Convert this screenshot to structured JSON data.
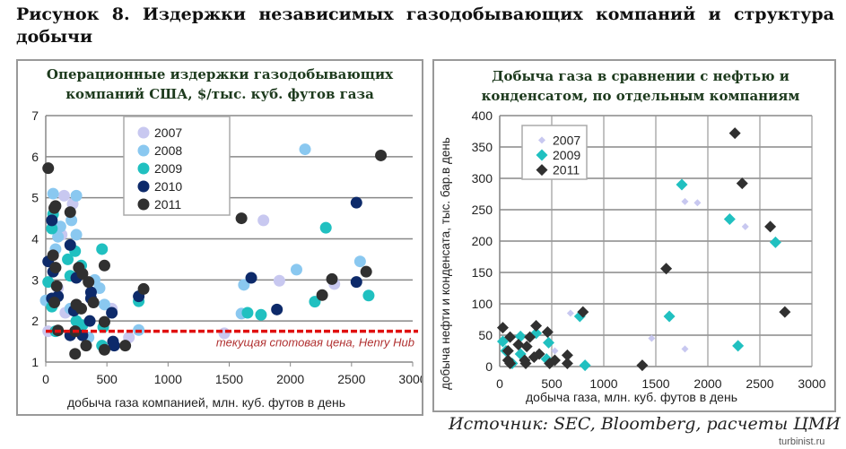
{
  "figure_title": "Рисунок 8. Издержки независимых газодобывающих компаний и структура добычи",
  "source": "Источник: SEC, Bloomberg, расчеты ЦМИ",
  "watermark": "turbinist.ru",
  "chart_data": [
    {
      "type": "scatter",
      "title_lines": [
        "Операционные издержки газодобывающих",
        "компаний США, $/тыс. куб. футов газа"
      ],
      "xlabel": "добыча газа компанией, млн. куб. футов в день",
      "ylabel": "",
      "xlim": [
        0,
        3000
      ],
      "ylim": [
        1,
        7
      ],
      "xticks": [
        0,
        500,
        1000,
        1500,
        2000,
        2500,
        3000
      ],
      "yticks": [
        1,
        2,
        3,
        4,
        5,
        6,
        7
      ],
      "grid": "horizontal",
      "legend": "top-left",
      "marker": "circle",
      "reference_line": {
        "y": 1.75,
        "label": "текущая спотовая цена, Henry Hub",
        "color": "#e01010"
      },
      "series": [
        {
          "name": "2007",
          "color": "#c8c8f0",
          "points": [
            [
              20,
              1.75
            ],
            [
              150,
              5.05
            ],
            [
              220,
              4.85
            ],
            [
              130,
              4.1
            ],
            [
              160,
              2.2
            ],
            [
              100,
              2.8
            ],
            [
              1460,
              1.7
            ],
            [
              1780,
              4.45
            ],
            [
              1910,
              2.98
            ],
            [
              2360,
              2.9
            ],
            [
              680,
              1.6
            ],
            [
              540,
              2.3
            ],
            [
              250,
              2.0
            ]
          ]
        },
        {
          "name": "2008",
          "color": "#8ac8f0",
          "points": [
            [
              60,
              5.1
            ],
            [
              250,
              5.05
            ],
            [
              210,
              4.45
            ],
            [
              250,
              4.1
            ],
            [
              120,
              4.3
            ],
            [
              80,
              3.75
            ],
            [
              100,
              4.05
            ],
            [
              2120,
              6.18
            ],
            [
              2570,
              3.45
            ],
            [
              2050,
              3.25
            ],
            [
              1620,
              2.88
            ],
            [
              1600,
              2.18
            ],
            [
              760,
              1.78
            ],
            [
              480,
              2.4
            ],
            [
              440,
              2.8
            ],
            [
              400,
              3.0
            ],
            [
              200,
              2.3
            ],
            [
              350,
              1.6
            ],
            [
              0,
              2.5
            ]
          ]
        },
        {
          "name": "2009",
          "color": "#20c0c0",
          "points": [
            [
              60,
              4.6
            ],
            [
              50,
              4.25
            ],
            [
              240,
              3.7
            ],
            [
              180,
              3.5
            ],
            [
              460,
              3.75
            ],
            [
              290,
              3.35
            ],
            [
              200,
              3.1
            ],
            [
              20,
              2.95
            ],
            [
              50,
              2.35
            ],
            [
              250,
              2.0
            ],
            [
              300,
              1.9
            ],
            [
              470,
              1.85
            ],
            [
              2290,
              4.27
            ],
            [
              2200,
              2.47
            ],
            [
              2640,
              2.62
            ],
            [
              1650,
              2.2
            ],
            [
              1760,
              2.15
            ],
            [
              760,
              2.48
            ],
            [
              80,
              1.75
            ],
            [
              460,
              1.4
            ]
          ]
        },
        {
          "name": "2010",
          "color": "#0d2a6a",
          "points": [
            [
              50,
              4.45
            ],
            [
              200,
              3.85
            ],
            [
              20,
              3.45
            ],
            [
              60,
              3.2
            ],
            [
              250,
              3.05
            ],
            [
              370,
              2.7
            ],
            [
              100,
              2.6
            ],
            [
              50,
              2.55
            ],
            [
              370,
              2.55
            ],
            [
              230,
              2.25
            ],
            [
              540,
              2.2
            ],
            [
              360,
              2.0
            ],
            [
              200,
              1.65
            ],
            [
              300,
              1.65
            ],
            [
              550,
              1.5
            ],
            [
              560,
              1.4
            ],
            [
              760,
              2.6
            ],
            [
              1680,
              3.05
            ],
            [
              1890,
              2.28
            ],
            [
              2540,
              4.88
            ],
            [
              2540,
              2.95
            ]
          ]
        },
        {
          "name": "2011",
          "color": "#303030",
          "points": [
            [
              20,
              5.72
            ],
            [
              70,
              4.75
            ],
            [
              200,
              4.65
            ],
            [
              80,
              4.8
            ],
            [
              60,
              3.6
            ],
            [
              80,
              3.3
            ],
            [
              480,
              3.35
            ],
            [
              270,
              3.3
            ],
            [
              300,
              3.15
            ],
            [
              90,
              2.85
            ],
            [
              350,
              2.95
            ],
            [
              800,
              2.78
            ],
            [
              70,
              2.45
            ],
            [
              390,
              2.45
            ],
            [
              250,
              2.4
            ],
            [
              290,
              2.3
            ],
            [
              100,
              1.77
            ],
            [
              240,
              1.75
            ],
            [
              480,
              1.98
            ],
            [
              330,
              1.4
            ],
            [
              480,
              1.3
            ],
            [
              650,
              1.4
            ],
            [
              240,
              1.2
            ],
            [
              1600,
              4.5
            ],
            [
              2740,
              6.03
            ],
            [
              2340,
              3.02
            ],
            [
              2620,
              3.2
            ],
            [
              2260,
              2.63
            ]
          ]
        }
      ]
    },
    {
      "type": "scatter",
      "title_lines": [
        "Добыча газа в сравнении с нефтью и",
        "конденсатом, по отдельным компаниям"
      ],
      "xlabel": "добыча газа, млн. куб. футов в день",
      "ylabel": "добыча нефти и конденсата, тыс. бар.в день",
      "xlim": [
        0,
        3000
      ],
      "ylim": [
        0,
        400
      ],
      "xticks": [
        0,
        500,
        1000,
        1500,
        2000,
        2500,
        3000
      ],
      "yticks": [
        0,
        50,
        100,
        150,
        200,
        250,
        300,
        350,
        400
      ],
      "grid": "both",
      "legend": "top-left",
      "marker": "diamond",
      "series": [
        {
          "name": "2007",
          "color": "#c8c8f0",
          "points": [
            [
              680,
              85
            ],
            [
              1460,
              45
            ],
            [
              1780,
              263
            ],
            [
              1900,
              261
            ],
            [
              2360,
              223
            ],
            [
              1780,
              28
            ],
            [
              530,
              25
            ]
          ]
        },
        {
          "name": "2009",
          "color": "#20c0c0",
          "points": [
            [
              1750,
              290
            ],
            [
              2210,
              235
            ],
            [
              2650,
              198
            ],
            [
              770,
              80
            ],
            [
              1630,
              80
            ],
            [
              2290,
              33
            ],
            [
              820,
              2
            ],
            [
              200,
              48
            ],
            [
              350,
              53
            ],
            [
              470,
              38
            ],
            [
              30,
              40
            ],
            [
              200,
              20
            ],
            [
              120,
              5
            ],
            [
              450,
              12
            ],
            [
              60,
              25
            ]
          ]
        },
        {
          "name": "2011",
          "color": "#303030",
          "points": [
            [
              2260,
              372
            ],
            [
              2330,
              292
            ],
            [
              2600,
              223
            ],
            [
              1600,
              156
            ],
            [
              2740,
              87
            ],
            [
              800,
              87
            ],
            [
              1370,
              2
            ],
            [
              30,
              62
            ],
            [
              100,
              47
            ],
            [
              290,
              47
            ],
            [
              350,
              65
            ],
            [
              460,
              55
            ],
            [
              180,
              35
            ],
            [
              260,
              32
            ],
            [
              80,
              25
            ],
            [
              380,
              20
            ],
            [
              330,
              15
            ],
            [
              240,
              10
            ],
            [
              100,
              5
            ],
            [
              530,
              10
            ],
            [
              650,
              18
            ],
            [
              650,
              5
            ],
            [
              480,
              5
            ],
            [
              80,
              10
            ],
            [
              250,
              5
            ]
          ]
        }
      ]
    }
  ]
}
